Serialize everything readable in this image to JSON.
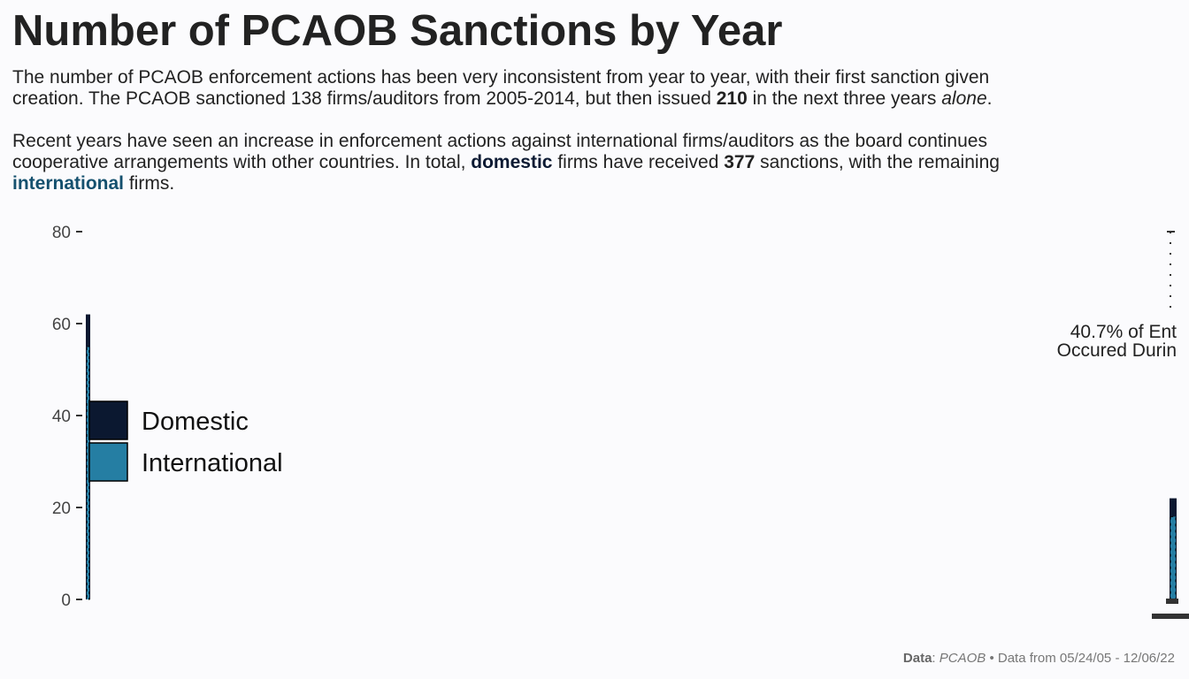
{
  "title": "Number of PCAOB Sanctions by Year",
  "subtitle": {
    "p1_a": "The number of PCAOB enforcement actions has been very inconsistent from year to year, with their first sanction given",
    "p1_b": "creation. The PCAOB sanctioned 138 firms/auditors from 2005-2014, but then issued ",
    "p1_bold": "210",
    "p1_c": " in the next three years ",
    "p1_em": "alone",
    "p1_d": ".",
    "p2_a": "Recent years have seen an increase in enforcement actions against international firms/auditors as the board continues",
    "p2_b": "cooperative arrangements with other countries. In total, ",
    "p2_dom": "domestic",
    "p2_c": " firms have received ",
    "p2_bold": "377",
    "p2_d": " sanctions, with the remaining",
    "p2_intl": "international",
    "p2_e": " firms."
  },
  "chart_data": {
    "type": "bar",
    "y_ticks": [
      "0",
      "20",
      "40",
      "60",
      "80"
    ],
    "ylim": [
      0,
      80
    ],
    "grid": false,
    "legend": {
      "position": "left-inside",
      "items": [
        {
          "label": "Domestic",
          "color": "#0b1830"
        },
        {
          "label": "International",
          "color": "#257ea3"
        }
      ]
    },
    "annotation": {
      "line1": "40.7% of Ent",
      "line2": "Occured Durin",
      "bracket_top": 80,
      "bracket_bottom": 62
    },
    "series": [
      {
        "name": "Domestic",
        "values": [
          62,
          22
        ]
      },
      {
        "name": "International",
        "values": [
          55,
          18
        ]
      }
    ]
  },
  "caption": {
    "data_label": "Data",
    "sep": ": ",
    "source": "PCAOB",
    "rest": " • Data from 05/24/05 - 12/06/22"
  }
}
